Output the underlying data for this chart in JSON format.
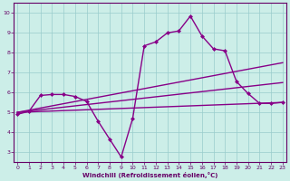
{
  "xlabel": "Windchill (Refroidissement éolien,°C)",
  "xlim": [
    0,
    23
  ],
  "ylim": [
    2.5,
    10.5
  ],
  "xticks": [
    0,
    1,
    2,
    3,
    4,
    5,
    6,
    7,
    8,
    9,
    10,
    11,
    12,
    13,
    14,
    15,
    16,
    17,
    18,
    19,
    20,
    21,
    22,
    23
  ],
  "yticks": [
    3,
    4,
    5,
    6,
    7,
    8,
    9,
    10
  ],
  "bg_color": "#cceee8",
  "series": [
    {
      "x": [
        0,
        23
      ],
      "y": [
        5.0,
        5.5
      ],
      "color": "#880088",
      "lw": 1.0,
      "marker": null,
      "ls": "-"
    },
    {
      "x": [
        0,
        23
      ],
      "y": [
        5.0,
        7.5
      ],
      "color": "#880088",
      "lw": 1.0,
      "marker": null,
      "ls": "-"
    },
    {
      "x": [
        0,
        23
      ],
      "y": [
        5.0,
        6.5
      ],
      "color": "#880088",
      "lw": 1.0,
      "marker": null,
      "ls": "-"
    },
    {
      "x": [
        0,
        1,
        2,
        3,
        4,
        5,
        6,
        7,
        8,
        9,
        10,
        11,
        12,
        13,
        14,
        15,
        16,
        17,
        18,
        19,
        20,
        21,
        22,
        23
      ],
      "y": [
        4.9,
        5.05,
        5.85,
        5.9,
        5.9,
        5.8,
        5.55,
        4.55,
        3.65,
        2.75,
        4.7,
        8.35,
        8.55,
        9.0,
        9.1,
        9.85,
        8.85,
        8.2,
        8.1,
        6.55,
        5.95,
        5.45,
        5.45,
        5.5
      ],
      "color": "#880088",
      "lw": 1.0,
      "marker": "D",
      "markersize": 2.0,
      "ls": "-"
    }
  ]
}
